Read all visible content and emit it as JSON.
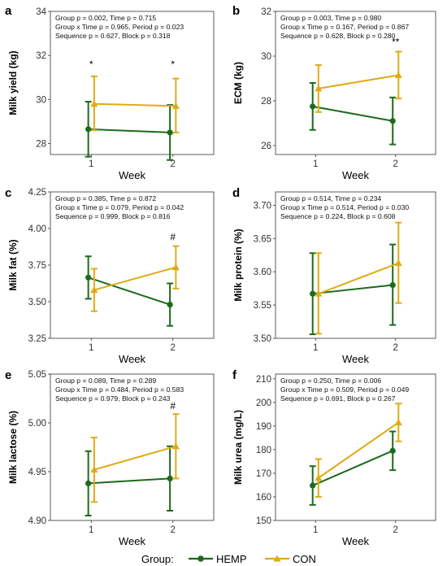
{
  "legend": {
    "title": "Group:",
    "items": [
      {
        "name": "HEMP",
        "color": "#1b6b1b",
        "marker": "circle"
      },
      {
        "name": "CON",
        "color": "#e0aa14",
        "marker": "triangle"
      }
    ]
  },
  "chart_data": [
    {
      "panel": "a",
      "type": "line",
      "ylabel": "Milk yield (kg)",
      "xlabel": "Week",
      "categories": [
        "1",
        "2"
      ],
      "ylim": [
        27.5,
        34
      ],
      "yticks": [
        28,
        30,
        32,
        34
      ],
      "stats": [
        "Group p = 0.002, Time p = 0.715",
        "Group x Time p = 0.965, Period p = 0.023",
        "Sequence p = 0.627, Block p = 0.318"
      ],
      "series": [
        {
          "name": "HEMP",
          "values": [
            28.65,
            28.5
          ],
          "err_low": [
            27.4,
            27.25
          ],
          "err_high": [
            29.9,
            29.75
          ]
        },
        {
          "name": "CON",
          "values": [
            29.8,
            29.7
          ],
          "err_low": [
            28.6,
            28.5
          ],
          "err_high": [
            31.05,
            30.95
          ]
        }
      ],
      "annotations": [
        {
          "x": "1",
          "y": 31.45,
          "text": "*"
        },
        {
          "x": "2",
          "y": 31.45,
          "text": "*"
        }
      ]
    },
    {
      "panel": "b",
      "type": "line",
      "ylabel": "ECM (kg)",
      "xlabel": "Week",
      "categories": [
        "1",
        "2"
      ],
      "ylim": [
        25.6,
        32
      ],
      "yticks": [
        26,
        28,
        30,
        32
      ],
      "stats": [
        "Group p = 0.003, Time p = 0.980",
        "Group x Time p = 0.167, Period p = 0.867",
        "Sequence p = 0.628, Block p = 0.280"
      ],
      "series": [
        {
          "name": "HEMP",
          "values": [
            27.75,
            27.1
          ],
          "err_low": [
            26.7,
            26.05
          ],
          "err_high": [
            28.8,
            28.15
          ]
        },
        {
          "name": "CON",
          "values": [
            28.55,
            29.15
          ],
          "err_low": [
            27.5,
            28.1
          ],
          "err_high": [
            29.6,
            30.2
          ]
        }
      ],
      "annotations": [
        {
          "x": "2",
          "y": 30.5,
          "text": "**"
        }
      ]
    },
    {
      "panel": "c",
      "type": "line",
      "ylabel": "Milk fat (%)",
      "xlabel": "Week",
      "categories": [
        "1",
        "2"
      ],
      "ylim": [
        3.25,
        4.25
      ],
      "yticks": [
        3.25,
        3.5,
        3.75,
        4.0,
        4.25
      ],
      "ytick_labels": [
        "3.25",
        "3.50",
        "3.75",
        "4.00",
        "4.25"
      ],
      "stats": [
        "Group p = 0.385, Time p = 0.872",
        "Group x Time p = 0.079, Period p = 0.042",
        "Sequence p = 0.999, Block p = 0.816"
      ],
      "series": [
        {
          "name": "HEMP",
          "values": [
            3.665,
            3.48
          ],
          "err_low": [
            3.52,
            3.335
          ],
          "err_high": [
            3.81,
            3.625
          ]
        },
        {
          "name": "CON",
          "values": [
            3.58,
            3.735
          ],
          "err_low": [
            3.435,
            3.59
          ],
          "err_high": [
            3.725,
            3.88
          ]
        }
      ],
      "annotations": [
        {
          "x": "2",
          "y": 3.92,
          "text": "#"
        }
      ]
    },
    {
      "panel": "d",
      "type": "line",
      "ylabel": "Milk protein (%)",
      "xlabel": "Week",
      "categories": [
        "1",
        "2"
      ],
      "ylim": [
        3.5,
        3.72
      ],
      "yticks": [
        3.5,
        3.55,
        3.6,
        3.65,
        3.7
      ],
      "ytick_labels": [
        "3.50",
        "3.55",
        "3.60",
        "3.65",
        "3.70"
      ],
      "stats": [
        "Group p = 0.514, Time p = 0.234",
        "Group x Time p = 0.514, Period p = 0.030",
        "Sequence p = 0.224, Block p = 0.608"
      ],
      "series": [
        {
          "name": "HEMP",
          "values": [
            3.567,
            3.58
          ],
          "err_low": [
            3.506,
            3.52
          ],
          "err_high": [
            3.628,
            3.641
          ]
        },
        {
          "name": "CON",
          "values": [
            3.567,
            3.613
          ],
          "err_low": [
            3.507,
            3.553
          ],
          "err_high": [
            3.628,
            3.674
          ]
        }
      ],
      "annotations": []
    },
    {
      "panel": "e",
      "type": "line",
      "ylabel": "Milk lactose (%)",
      "xlabel": "Week",
      "categories": [
        "1",
        "2"
      ],
      "ylim": [
        4.9,
        5.05
      ],
      "yticks": [
        4.9,
        4.95,
        5.0,
        5.05
      ],
      "ytick_labels": [
        "4.90",
        "4.95",
        "5.00",
        "5.05"
      ],
      "stats": [
        "Group p = 0.089, Time p = 0.289",
        "Group x Time p = 0.484, Period p = 0.583",
        "Sequence p = 0.979, Block p = 0.243"
      ],
      "series": [
        {
          "name": "HEMP",
          "values": [
            4.938,
            4.943
          ],
          "err_low": [
            4.905,
            4.91
          ],
          "err_high": [
            4.971,
            4.976
          ]
        },
        {
          "name": "CON",
          "values": [
            4.952,
            4.976
          ],
          "err_low": [
            4.919,
            4.943
          ],
          "err_high": [
            4.985,
            5.009
          ]
        }
      ],
      "annotations": [
        {
          "x": "2",
          "y": 5.014,
          "text": "#"
        }
      ]
    },
    {
      "panel": "f",
      "type": "line",
      "ylabel": "Milk urea (mg/L)",
      "xlabel": "Week",
      "categories": [
        "1",
        "2"
      ],
      "ylim": [
        150,
        212
      ],
      "yticks": [
        150,
        160,
        170,
        180,
        190,
        200,
        210
      ],
      "stats": [
        "Group p = 0.250, Time p = 0.006",
        "Group x Time p = 0.509, Period p = 0.049",
        "Sequence p = 0.691, Block p = 0.267"
      ],
      "series": [
        {
          "name": "HEMP",
          "values": [
            164.8,
            179.5
          ],
          "err_low": [
            156.6,
            171.3
          ],
          "err_high": [
            173.0,
            187.7
          ]
        },
        {
          "name": "CON",
          "values": [
            168.0,
            191.5
          ],
          "err_low": [
            160.0,
            183.5
          ],
          "err_high": [
            176.0,
            199.5
          ]
        }
      ],
      "annotations": []
    }
  ]
}
